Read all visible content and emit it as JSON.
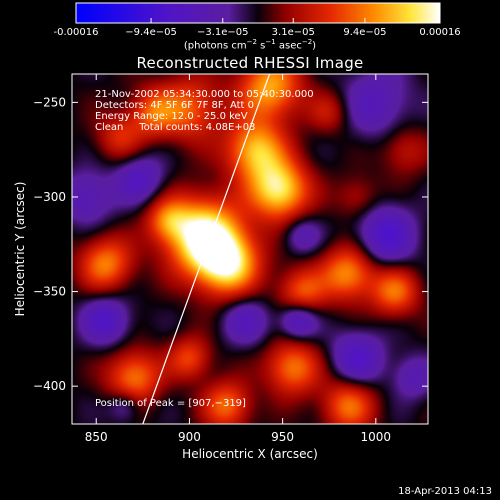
{
  "colorbar": {
    "ticks": [
      "-0.00016",
      "−9.4e−05",
      "−3.1e−05",
      "3.1e−05",
      "9.4e−05",
      "0.00016"
    ],
    "tick_values": [
      -0.00016,
      -9.4e-05,
      -3.1e-05,
      3.1e-05,
      9.4e-05,
      0.00016
    ],
    "range": [
      -0.00016,
      0.00016
    ],
    "unit_base": "(photons cm",
    "unit_sup1": "−2",
    "unit_mid": " s",
    "unit_sup2": "−1",
    "unit_mid2": " asec",
    "unit_sup3": "−2",
    "unit_end": ")"
  },
  "chart_data": {
    "type": "heatmap",
    "title": "Reconstructed RHESSI Image",
    "xlabel": "Heliocentric X (arcsec)",
    "ylabel": "Heliocentric Y (arcsec)",
    "xlim": [
      837,
      1028
    ],
    "ylim": [
      -420,
      -235
    ],
    "x_ticks": [
      850,
      900,
      950,
      1000
    ],
    "x_tick_labels": [
      "850",
      "900",
      "950",
      "1000"
    ],
    "y_ticks": [
      -250,
      -300,
      -350,
      -400
    ],
    "y_tick_labels": [
      "−250",
      "−300",
      "−350",
      "−400"
    ],
    "annotations": {
      "line1": "21-Nov-2002 05:34:30.000 to 05:40:30.000",
      "line2": "Detectors: 4F 5F 6F 7F 8F, Att 0",
      "line3": "Energy Range: 12.0 - 25.0 keV",
      "line4": "Clean     Total counts: 4.08E+03",
      "peak": "Position of Peak = [907,−319]"
    },
    "peak_position": [
      907,
      -319
    ],
    "limb_line": [
      [
        875,
        -420
      ],
      [
        943,
        -235
      ]
    ],
    "blobs": [
      {
        "x": 907,
        "y": -320,
        "s": 14,
        "a": 1.0
      },
      {
        "x": 920,
        "y": -335,
        "s": 12,
        "a": 0.85
      },
      {
        "x": 948,
        "y": -296,
        "s": 11,
        "a": 0.9
      },
      {
        "x": 935,
        "y": -275,
        "s": 11,
        "a": 0.75
      },
      {
        "x": 943,
        "y": -242,
        "s": 12,
        "a": 0.7
      },
      {
        "x": 900,
        "y": -253,
        "s": 12,
        "a": 0.5
      },
      {
        "x": 880,
        "y": -255,
        "s": 9,
        "a": 0.45
      },
      {
        "x": 862,
        "y": -268,
        "s": 9,
        "a": 0.35
      },
      {
        "x": 855,
        "y": -335,
        "s": 10,
        "a": 0.6
      },
      {
        "x": 888,
        "y": -312,
        "s": 8,
        "a": 0.45
      },
      {
        "x": 870,
        "y": -395,
        "s": 10,
        "a": 0.6
      },
      {
        "x": 900,
        "y": -385,
        "s": 8,
        "a": 0.45
      },
      {
        "x": 920,
        "y": -410,
        "s": 9,
        "a": 0.55
      },
      {
        "x": 955,
        "y": -390,
        "s": 10,
        "a": 0.6
      },
      {
        "x": 960,
        "y": -350,
        "s": 9,
        "a": 0.5
      },
      {
        "x": 985,
        "y": -340,
        "s": 10,
        "a": 0.65
      },
      {
        "x": 1010,
        "y": -350,
        "s": 9,
        "a": 0.55
      },
      {
        "x": 985,
        "y": -410,
        "s": 10,
        "a": 0.55
      },
      {
        "x": 1015,
        "y": -275,
        "s": 9,
        "a": 0.3
      },
      {
        "x": 990,
        "y": -300,
        "s": 8,
        "a": 0.25
      },
      {
        "x": 975,
        "y": -255,
        "s": 8,
        "a": 0.28
      },
      {
        "x": 1000,
        "y": -250,
        "s": 13,
        "a": -0.35
      },
      {
        "x": 1005,
        "y": -320,
        "s": 11,
        "a": -0.5
      },
      {
        "x": 990,
        "y": -385,
        "s": 10,
        "a": -0.45
      },
      {
        "x": 930,
        "y": -365,
        "s": 9,
        "a": -0.35
      },
      {
        "x": 958,
        "y": -365,
        "s": 7,
        "a": -0.5
      },
      {
        "x": 855,
        "y": -365,
        "s": 9,
        "a": -0.45
      },
      {
        "x": 873,
        "y": -290,
        "s": 9,
        "a": -0.4
      },
      {
        "x": 845,
        "y": -300,
        "s": 10,
        "a": -0.35
      },
      {
        "x": 960,
        "y": -320,
        "s": 7,
        "a": -0.3
      },
      {
        "x": 865,
        "y": -410,
        "s": 6,
        "a": -0.3
      },
      {
        "x": 1020,
        "y": -395,
        "s": 8,
        "a": -0.3
      }
    ]
  },
  "footer": {
    "timestamp": "18-Apr-2013 04:13"
  }
}
